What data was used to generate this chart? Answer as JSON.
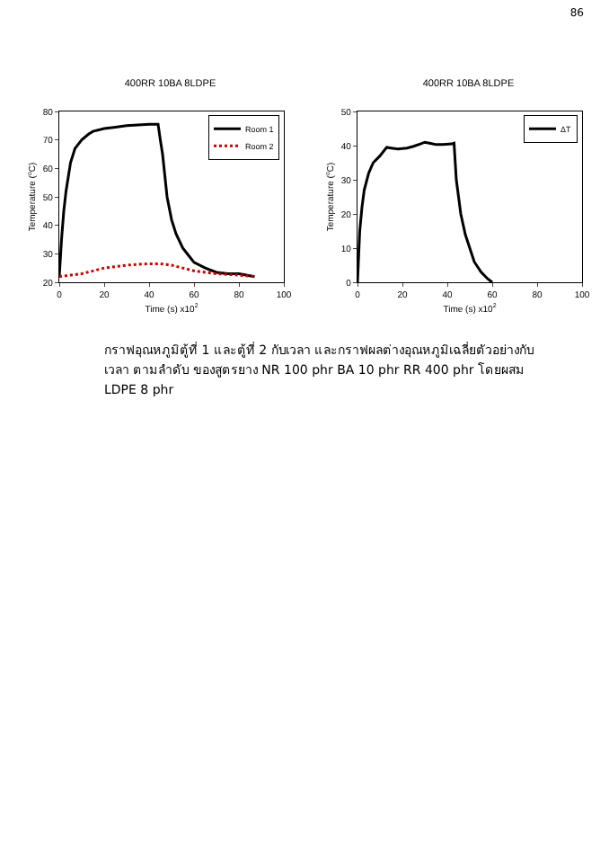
{
  "chart_data": [
    {
      "type": "line",
      "title": "400RR 10BA 8LDPE",
      "xlabel": "Time (s) x10$^{2}$",
      "ylabel": "Temperature ($^{o}$C)",
      "xlim": [
        0,
        100
      ],
      "xticks": [
        0,
        20,
        40,
        60,
        80,
        100
      ],
      "ylim": [
        20,
        80
      ],
      "yticks": [
        20,
        30,
        40,
        50,
        60,
        70,
        80
      ],
      "grid": false,
      "legend": "top right",
      "marker": "none",
      "annotations": [
        "86"
      ],
      "series": [
        {
          "name": "Room 1",
          "color": "#000000",
          "line_style": "solid",
          "x": [
            0,
            1,
            2,
            3,
            5,
            7,
            10,
            13,
            15,
            20,
            25,
            30,
            35,
            40,
            44,
            45,
            46,
            48,
            50,
            52,
            55,
            58,
            60,
            65,
            70,
            75,
            80,
            87
          ],
          "values": [
            22,
            35,
            45,
            52,
            62,
            67,
            70,
            72,
            73,
            74,
            74.5,
            75,
            75.3,
            75.5,
            75.5,
            70,
            65,
            50,
            42,
            37,
            32,
            29,
            27,
            25,
            23.5,
            23,
            23,
            22
          ]
        },
        {
          "name": "Room 2",
          "color": "#cc0000",
          "line_style": "dotted",
          "x": [
            0,
            5,
            10,
            15,
            20,
            25,
            30,
            35,
            40,
            45,
            50,
            55,
            60,
            65,
            70,
            80,
            87
          ],
          "values": [
            22,
            22.5,
            23,
            24,
            25,
            25.5,
            26,
            26.3,
            26.5,
            26.5,
            26,
            25,
            24,
            23.5,
            23,
            22.5,
            22
          ]
        }
      ]
    },
    {
      "type": "line",
      "title": "400RR 10BA 8LDPE",
      "xlabel": "Time (s) x10$^{2}$",
      "ylabel": "Temperature ($^{o}$C)",
      "xlim": [
        0,
        100
      ],
      "xticks": [
        0,
        20,
        40,
        60,
        80,
        100
      ],
      "ylim": [
        0,
        50
      ],
      "yticks": [
        0,
        10,
        20,
        30,
        40,
        50
      ],
      "grid": false,
      "legend": "top right",
      "marker": "none",
      "annotations": [
        "กราฟอุณหภูมิตู้ที่ 1 และตู้ที่ 2 กับเวลา และกราฟผลต่างอุณหภูมิเฉลี่ยตัวอย่างกับเวลา ตามลำดับ ของสูตรยาง NR 100 phr BA 10 phr RR 400 phr โดยผสม LDPE 8 phr"
      ],
      "series": [
        {
          "name": "ΔT",
          "color": "#000000",
          "line_style": "solid",
          "x": [
            0,
            1,
            2,
            3,
            5,
            7,
            10,
            13,
            15,
            18,
            22,
            25,
            28,
            30,
            33,
            35,
            38,
            42,
            43,
            44,
            45,
            46,
            48,
            50,
            52,
            55,
            58,
            60
          ],
          "values": [
            0,
            15,
            22,
            27,
            32,
            35,
            37,
            39.5,
            39.3,
            39,
            39.3,
            39.8,
            40.5,
            41,
            40.6,
            40.3,
            40.3,
            40.5,
            40.7,
            30,
            25,
            20,
            14,
            10,
            6,
            3,
            1,
            0
          ]
        }
      ]
    }
  ]
}
